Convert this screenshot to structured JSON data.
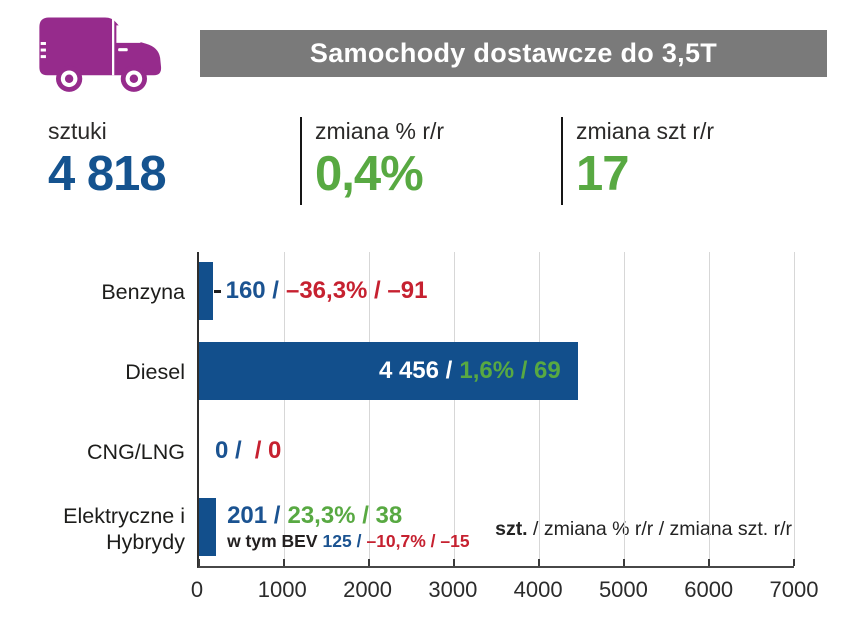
{
  "header": {
    "title": "Samochody dostawcze do 3,5T"
  },
  "icon": {
    "name": "delivery-van-icon",
    "color": "#962b8c"
  },
  "summary": [
    {
      "label": "sztuki",
      "value": "4 818",
      "color": "#15538f"
    },
    {
      "label": "zmiana % r/r",
      "value": "0,4%",
      "color": "#58a942"
    },
    {
      "label": "zmiana szt r/r",
      "value": "17",
      "color": "#58a942"
    }
  ],
  "totals": {
    "count": 4818,
    "change_pct": 0.4,
    "change_units": 17
  },
  "chart_data": {
    "type": "bar",
    "orientation": "horizontal",
    "title": "Samochody dostawcze do 3,5T",
    "categories": [
      "Benzyna",
      "Diesel",
      "CNG/LNG",
      "Elektryczne i Hybrydy"
    ],
    "values": [
      160,
      4456,
      0,
      201
    ],
    "change_pct": [
      -36.3,
      1.6,
      null,
      23.3
    ],
    "change_units": [
      -91,
      69,
      0,
      38
    ],
    "xlim": [
      0,
      7000
    ],
    "xticks": [
      "0",
      "1000",
      "2000",
      "3000",
      "4000",
      "5000",
      "6000",
      "7000"
    ],
    "grid": true,
    "bar_color": "#124f8c",
    "rows": [
      {
        "label": "Benzyna",
        "count": "160 /",
        "change": "–36,3% / –91",
        "change_color": "red",
        "label_placement": "outside"
      },
      {
        "label": "Diesel",
        "count": "4 456 /",
        "change": "1,6% / 69",
        "change_color": "green",
        "label_placement": "inside"
      },
      {
        "label": "CNG/LNG",
        "count": "0 /",
        "change": "/ 0",
        "change_color": "red",
        "label_placement": "outside"
      },
      {
        "label": "Elektryczne i Hybrydy",
        "count": "201 /",
        "change": "23,3% / 38",
        "change_color": "green",
        "label_placement": "outside"
      }
    ],
    "bev_annotation": {
      "prefix": "w tym BEV",
      "count": "125 /",
      "change": "–10,7% / –15",
      "numbers": {
        "count": 125,
        "change_pct": -10.7,
        "change_units": -15
      }
    },
    "legend": {
      "bold": "szt.",
      "rest": " / zmiana % r/r / zmiana szt. r/r"
    }
  }
}
